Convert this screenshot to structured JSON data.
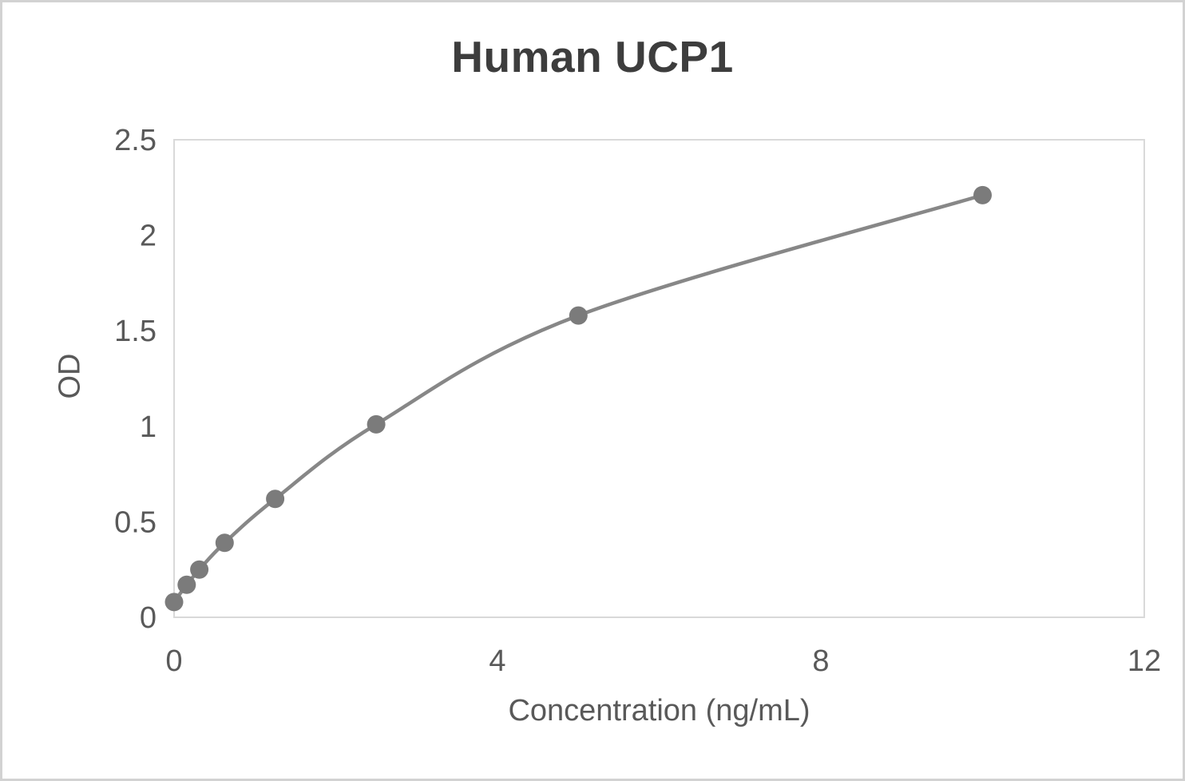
{
  "chart_data": {
    "type": "scatter",
    "title": "Human UCP1",
    "xlabel": "Concentration (ng/mL)",
    "ylabel": "OD",
    "x": [
      0,
      0.156,
      0.312,
      0.625,
      1.25,
      2.5,
      5,
      10
    ],
    "y": [
      0.08,
      0.17,
      0.25,
      0.39,
      0.62,
      1.01,
      1.58,
      2.21
    ],
    "xlim": [
      0,
      12
    ],
    "ylim": [
      0,
      2.5
    ],
    "xticks": [
      0,
      4,
      8,
      12
    ],
    "yticks": [
      0,
      0.5,
      1,
      1.5,
      2,
      2.5
    ],
    "xtick_labels": [
      "0",
      "4",
      "8",
      "12"
    ],
    "ytick_labels": [
      "0",
      "0.5",
      "1",
      "1.5",
      "2",
      "2.5"
    ],
    "grid": false,
    "legend": "none",
    "marker": "circle",
    "marker_color": "#7b7b7b",
    "line_color": "#878787",
    "axis_color": "#d9d9d9",
    "text_color": "#595959",
    "title_color": "#3d3d3d",
    "frame_color": "#d2d2d2"
  }
}
